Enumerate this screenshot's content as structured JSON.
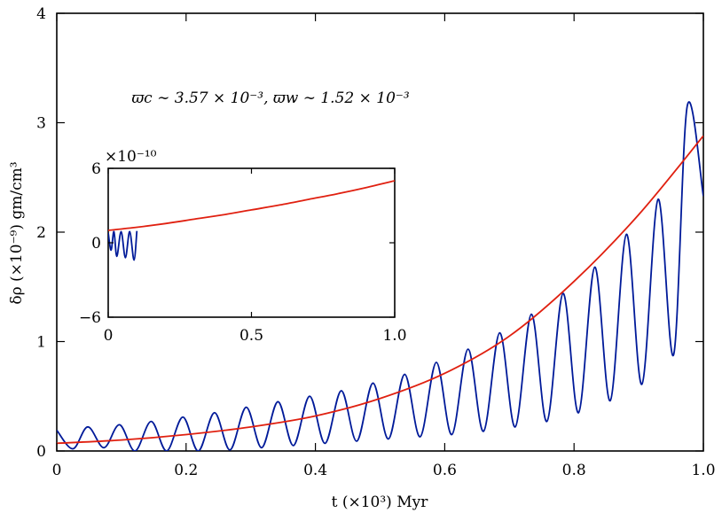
{
  "chart_data": [
    {
      "type": "line",
      "title": "",
      "xlabel": "t (×10³) Myr",
      "ylabel": "δρ (×10⁻⁹) gm/cm³",
      "xlim": [
        0,
        1.0
      ],
      "ylim": [
        0,
        4
      ],
      "xticks": [
        "0",
        "0.2",
        "0.4",
        "0.6",
        "0.8",
        "1.0"
      ],
      "yticks": [
        "0",
        "1",
        "2",
        "3",
        "4"
      ],
      "annotation": "ϖc ∼ 3.57 × 10⁻³, ϖw ∼ 1.52 × 10⁻³",
      "grid": false,
      "legend": "none",
      "series": [
        {
          "color": "#001a99",
          "x": [
            0.0,
            0.025,
            0.048,
            0.073,
            0.097,
            0.121,
            0.146,
            0.17,
            0.195,
            0.219,
            0.244,
            0.268,
            0.293,
            0.317,
            0.342,
            0.366,
            0.391,
            0.415,
            0.44,
            0.464,
            0.489,
            0.513,
            0.538,
            0.562,
            0.587,
            0.611,
            0.636,
            0.66,
            0.685,
            0.709,
            0.734,
            0.758,
            0.783,
            0.807,
            0.832,
            0.856,
            0.881,
            0.905,
            0.93,
            0.954,
            0.975,
            1.0
          ],
          "y": [
            0.19,
            0.02,
            0.22,
            0.03,
            0.24,
            0.0,
            0.27,
            0.0,
            0.31,
            0.0,
            0.35,
            0.01,
            0.4,
            0.03,
            0.45,
            0.05,
            0.5,
            0.07,
            0.55,
            0.09,
            0.62,
            0.11,
            0.7,
            0.13,
            0.81,
            0.15,
            0.93,
            0.18,
            1.08,
            0.22,
            1.25,
            0.27,
            1.44,
            0.35,
            1.68,
            0.46,
            1.98,
            0.61,
            2.3,
            0.88,
            3.15,
            2.33
          ]
        },
        {
          "color": "#e02010",
          "x": [
            0.0,
            0.1,
            0.2,
            0.3,
            0.4,
            0.5,
            0.6,
            0.7,
            0.8,
            0.9,
            1.0
          ],
          "y": [
            0.07,
            0.1,
            0.15,
            0.22,
            0.32,
            0.48,
            0.71,
            1.05,
            1.55,
            2.16,
            2.88
          ]
        }
      ]
    },
    {
      "type": "line",
      "title": "",
      "xlabel": "",
      "ylabel": "",
      "scale_label": "×10⁻¹⁰",
      "xlim": [
        0,
        1.0
      ],
      "ylim": [
        -6,
        6
      ],
      "xticks": [
        "0",
        "0.5",
        "1.0"
      ],
      "yticks": [
        "−6",
        "0",
        "6"
      ],
      "grid": false,
      "legend": "none",
      "series": [
        {
          "color": "#001a99",
          "x": [
            0.0,
            0.01,
            0.02,
            0.03,
            0.045,
            0.06,
            0.075,
            0.09,
            0.1
          ],
          "y": [
            0.8,
            -0.6,
            0.9,
            -1.1,
            0.9,
            -1.2,
            0.9,
            -1.4,
            0.95
          ]
        },
        {
          "color": "#e02010",
          "x": [
            0.0,
            0.1,
            0.2,
            0.3,
            0.4,
            0.5,
            0.6,
            0.7,
            0.8,
            0.9,
            1.0
          ],
          "y": [
            1.0,
            1.25,
            1.55,
            1.9,
            2.25,
            2.65,
            3.05,
            3.5,
            3.95,
            4.45,
            5.0
          ]
        }
      ]
    }
  ]
}
